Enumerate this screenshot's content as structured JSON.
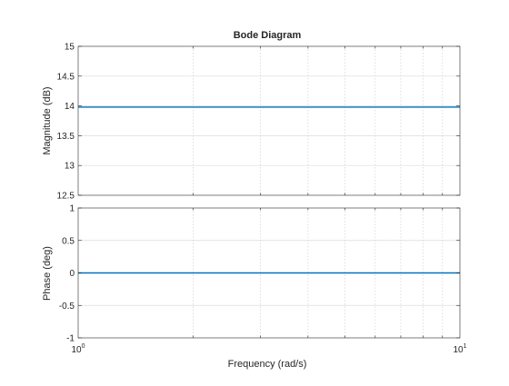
{
  "chart_data": {
    "type": "line",
    "title": "Bode Diagram",
    "xlabel": "Frequency  (rad/s)",
    "xscale": "log",
    "xlim": [
      1,
      10
    ],
    "x_tick_labels": [
      {
        "value": 1,
        "base": "10",
        "exp": "0"
      },
      {
        "value": 10,
        "base": "10",
        "exp": "1"
      }
    ],
    "grid": true,
    "line_color": "#0072BD",
    "subplots": [
      {
        "name": "magnitude",
        "ylabel": "Magnitude (dB)",
        "ylim": [
          12.5,
          15
        ],
        "yticks": [
          12.5,
          13,
          13.5,
          14,
          14.5,
          15
        ],
        "ytick_labels": [
          "12.5",
          "13",
          "13.5",
          "14",
          "14.5",
          "15"
        ],
        "x": [
          1,
          10
        ],
        "y": [
          13.98,
          13.98
        ]
      },
      {
        "name": "phase",
        "ylabel": "Phase (deg)",
        "ylim": [
          -1,
          1
        ],
        "yticks": [
          -1,
          -0.5,
          0,
          0.5,
          1
        ],
        "ytick_labels": [
          "-1",
          "-0.5",
          "0",
          "0.5",
          "1"
        ],
        "x": [
          1,
          10
        ],
        "y": [
          0,
          0
        ]
      }
    ]
  }
}
